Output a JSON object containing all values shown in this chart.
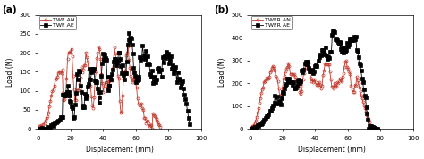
{
  "panel_a": {
    "title": "(a)",
    "xlabel": "Displacement (mm)",
    "ylabel": "Load (N)",
    "ylim": [
      0,
      300
    ],
    "xlim": [
      0,
      100
    ],
    "yticks": [
      0,
      50,
      100,
      150,
      200,
      250,
      300
    ],
    "xticks": [
      0,
      20,
      40,
      60,
      80,
      100
    ],
    "legend": [
      "TWF AE",
      "TWF AN"
    ],
    "ae_color": "#000000",
    "an_color": "#c0392b",
    "ae_marker": "s",
    "an_marker": "o"
  },
  "panel_b": {
    "title": "(b)",
    "xlabel": "Displacement (mm)",
    "ylabel": "Load (N)",
    "ylim": [
      0,
      500
    ],
    "xlim": [
      0,
      100
    ],
    "yticks": [
      0,
      100,
      200,
      300,
      400,
      500
    ],
    "xticks": [
      0,
      20,
      40,
      60,
      80,
      100
    ],
    "legend": [
      "TWFR AE",
      "TWFR AN"
    ],
    "ae_color": "#000000",
    "an_color": "#c0392b",
    "ae_marker": "s",
    "an_marker": "o"
  }
}
